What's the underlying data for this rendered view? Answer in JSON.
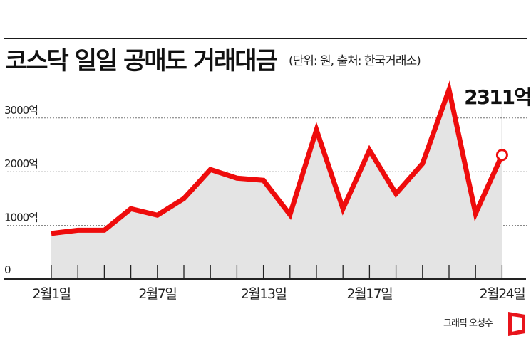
{
  "header": {
    "title": "코스닥 일일 공매도 거래대금",
    "subtitle": "(단위: 원, 출처: 한국거래소)"
  },
  "credit": {
    "text": "그래픽 오성수",
    "logo_color": "#e8141b"
  },
  "colors": {
    "line": "#ee0c0c",
    "fill": "#e4e4e4",
    "grid": "#777777",
    "axis": "#222222"
  },
  "chart_data": {
    "type": "area",
    "title": "코스닥 일일 공매도 거래대금",
    "subtitle": "(단위: 원, 출처: 한국거래소)",
    "xlabel": "",
    "ylabel": "",
    "unit": "억 원",
    "ylim": [
      0,
      3700
    ],
    "yticks": [
      0,
      1000,
      2000,
      3000
    ],
    "ytick_labels": [
      "0",
      "1000억",
      "2000억",
      "3000억"
    ],
    "grid": "horizontal dotted",
    "x_tick_labels": [
      {
        "index": 0,
        "label": "2월1일"
      },
      {
        "index": 4,
        "label": "2월7일"
      },
      {
        "index": 8,
        "label": "2월13일"
      },
      {
        "index": 12,
        "label": "2월17일"
      },
      {
        "index": 17,
        "label": "2월24일"
      }
    ],
    "series": [
      {
        "name": "코스닥 일일 공매도 거래대금",
        "values": [
          850,
          910,
          910,
          1310,
          1190,
          1500,
          2040,
          1880,
          1840,
          1200,
          2780,
          1310,
          2400,
          1590,
          2150,
          3530,
          1220,
          2311
        ]
      }
    ],
    "annotations": [
      {
        "index": 17,
        "text": "2311억",
        "marker": "circle"
      }
    ]
  }
}
